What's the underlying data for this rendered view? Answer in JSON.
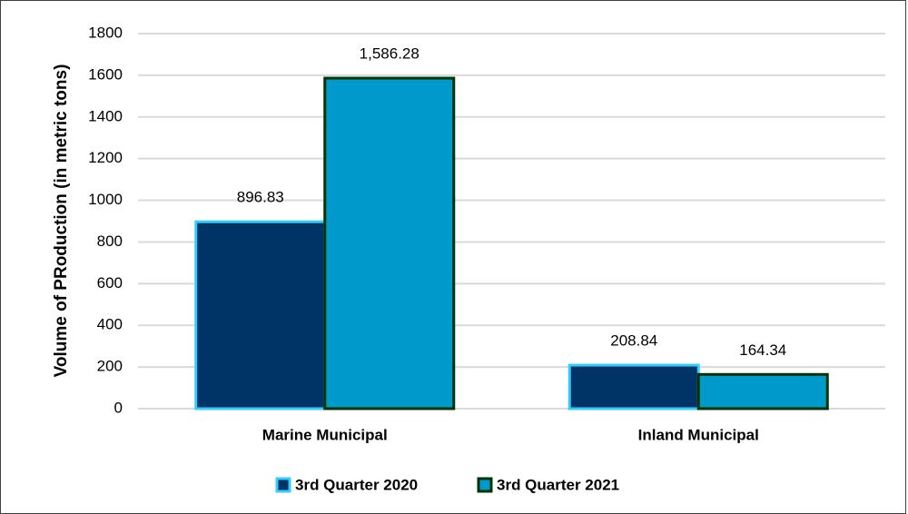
{
  "chart_data": {
    "type": "bar",
    "y_label": "Volume of PRoduction (in metric tons)",
    "categories": [
      "Marine Municipal",
      "Inland Municipal"
    ],
    "series": [
      {
        "name": "3rd Quarter 2020",
        "color": "#003366",
        "border_color": "#33ccff",
        "values": [
          896.83,
          208.84
        ],
        "value_labels": [
          "896.83",
          "208.84"
        ]
      },
      {
        "name": "3rd Quarter 2021",
        "color": "#0099cc",
        "border_color": "#003300",
        "values": [
          1586.28,
          164.34
        ],
        "value_labels": [
          "1,586.28",
          "164.34"
        ]
      }
    ],
    "ylim": [
      0,
      1800
    ],
    "yticks": [
      0,
      200,
      400,
      600,
      800,
      1000,
      1200,
      1400,
      1600,
      1800
    ],
    "grid": true,
    "legend": "bottom"
  }
}
